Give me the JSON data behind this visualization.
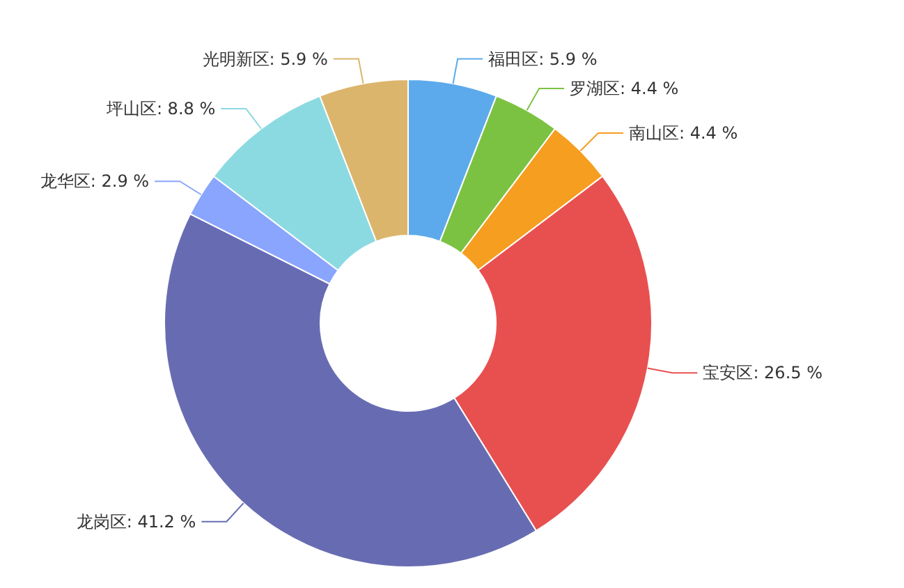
{
  "chart_data": {
    "type": "donut",
    "categories": [
      "福田区",
      "罗湖区",
      "南山区",
      "宝安区",
      "龙岗区",
      "龙华区",
      "坪山区",
      "光明新区"
    ],
    "values": [
      5.9,
      4.4,
      4.4,
      26.5,
      41.2,
      2.9,
      8.8,
      5.9
    ],
    "value_labels": [
      "5.9 %",
      "4.4 %",
      "4.4 %",
      "26.5 %",
      "41.2 %",
      "2.9 %",
      "8.8 %",
      "5.9 %"
    ],
    "colors": [
      "#5caaec",
      "#7cc242",
      "#f59e20",
      "#e85050",
      "#676cb2",
      "#8aa5fd",
      "#8cdae1",
      "#dcb56c"
    ],
    "legend": false
  }
}
